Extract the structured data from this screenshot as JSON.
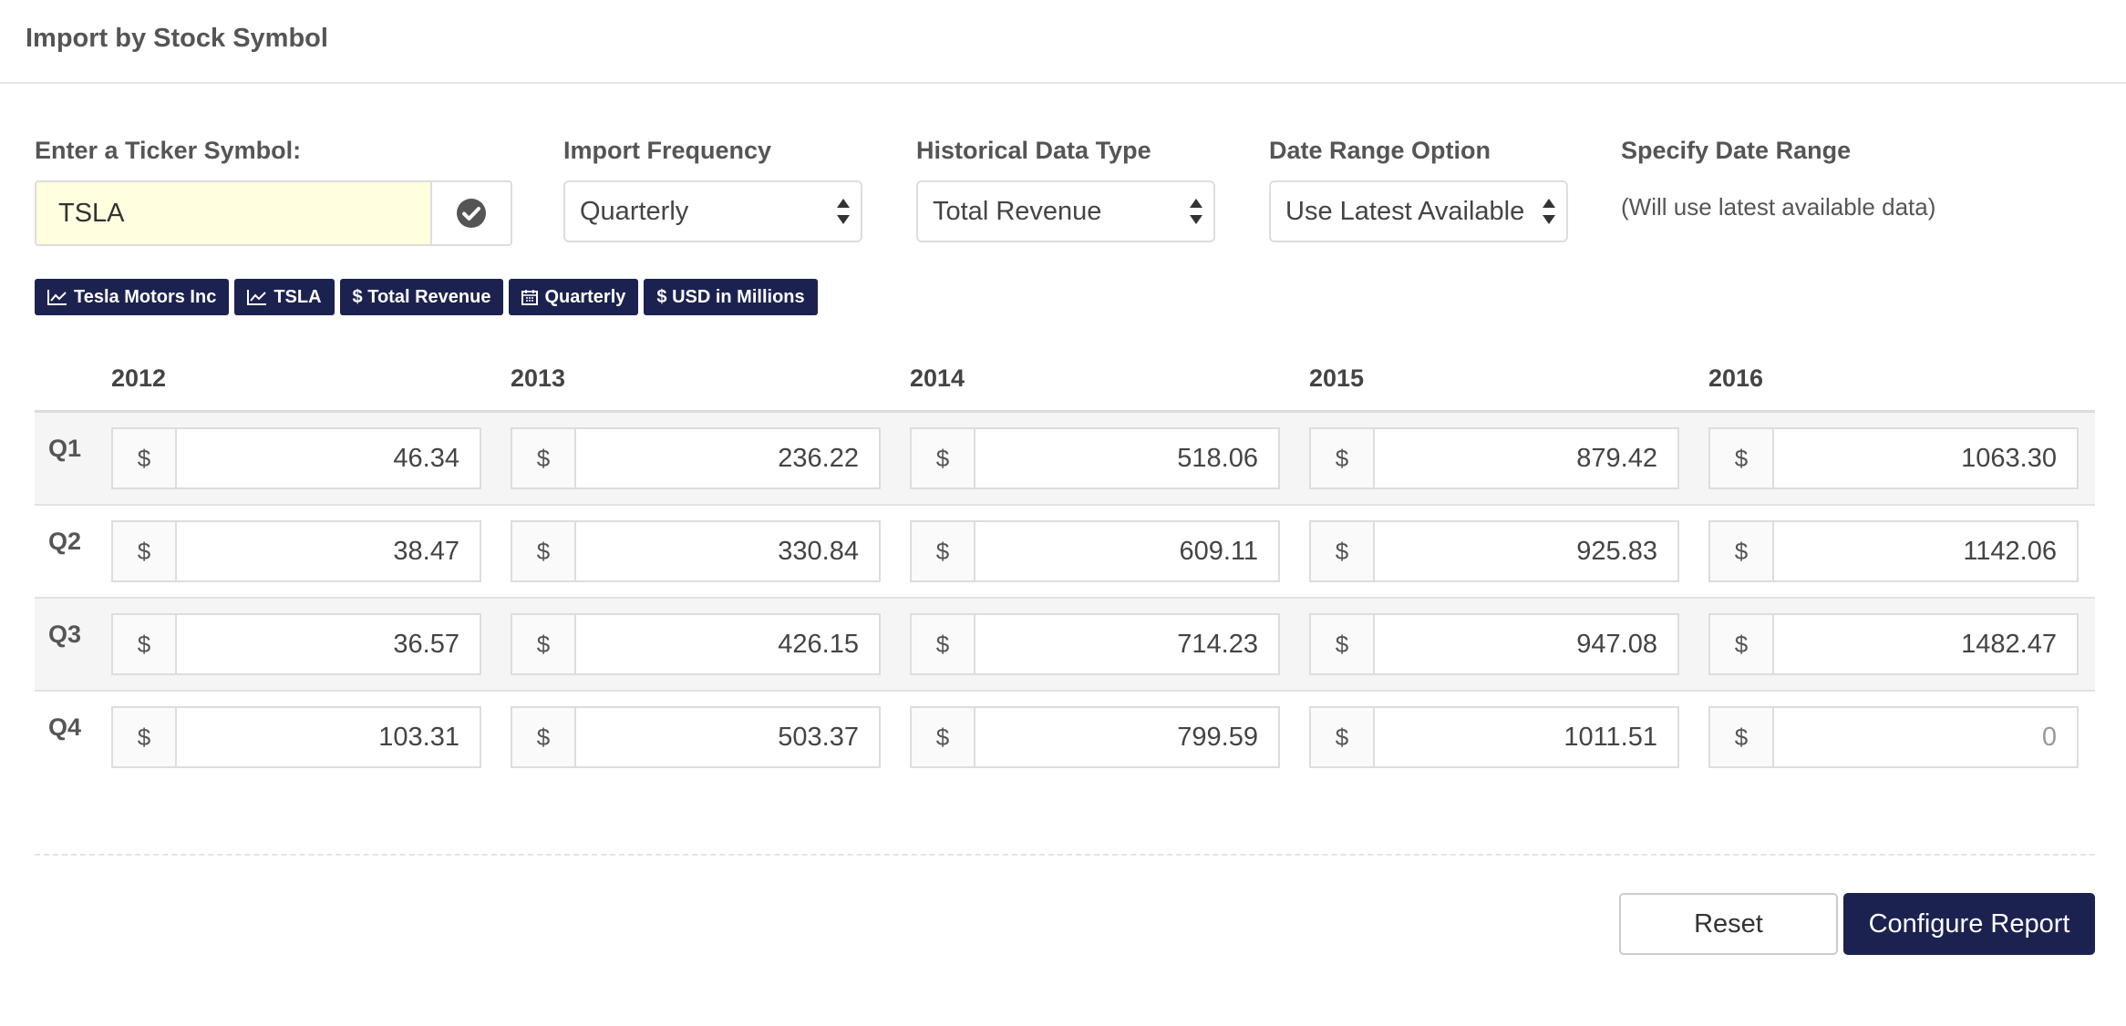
{
  "header": {
    "title": "Import by Stock Symbol"
  },
  "form": {
    "ticker": {
      "label": "Enter a Ticker Symbol:",
      "value": "TSLA"
    },
    "frequency": {
      "label": "Import Frequency",
      "selected": "Quarterly"
    },
    "data_type": {
      "label": "Historical Data Type",
      "selected": "Total Revenue"
    },
    "range_option": {
      "label": "Date Range Option",
      "selected": "Use Latest Available"
    },
    "date_range": {
      "label": "Specify Date Range",
      "note": "(Will use latest available data)"
    }
  },
  "badges": [
    {
      "icon": "line-chart-icon",
      "label": "Tesla Motors Inc"
    },
    {
      "icon": "line-chart-icon",
      "label": "TSLA"
    },
    {
      "icon": "dollar-icon",
      "label": "$ Total Revenue"
    },
    {
      "icon": "calendar-icon",
      "label": "Quarterly"
    },
    {
      "icon": "dollar-icon",
      "label": "$ USD in Millions"
    }
  ],
  "table": {
    "years": [
      "2012",
      "2013",
      "2014",
      "2015",
      "2016"
    ],
    "currency_symbol": "$",
    "rows": [
      {
        "quarter": "Q1",
        "values": [
          "46.34",
          "236.22",
          "518.06",
          "879.42",
          "1063.30"
        ]
      },
      {
        "quarter": "Q2",
        "values": [
          "38.47",
          "330.84",
          "609.11",
          "925.83",
          "1142.06"
        ]
      },
      {
        "quarter": "Q3",
        "values": [
          "36.57",
          "426.15",
          "714.23",
          "947.08",
          "1482.47"
        ]
      },
      {
        "quarter": "Q4",
        "values": [
          "103.31",
          "503.37",
          "799.59",
          "1011.51",
          "0"
        ]
      }
    ]
  },
  "buttons": {
    "reset": "Reset",
    "configure": "Configure Report"
  },
  "colors": {
    "brand": "#1c2250",
    "ticker_bg": "#ffffe0"
  }
}
